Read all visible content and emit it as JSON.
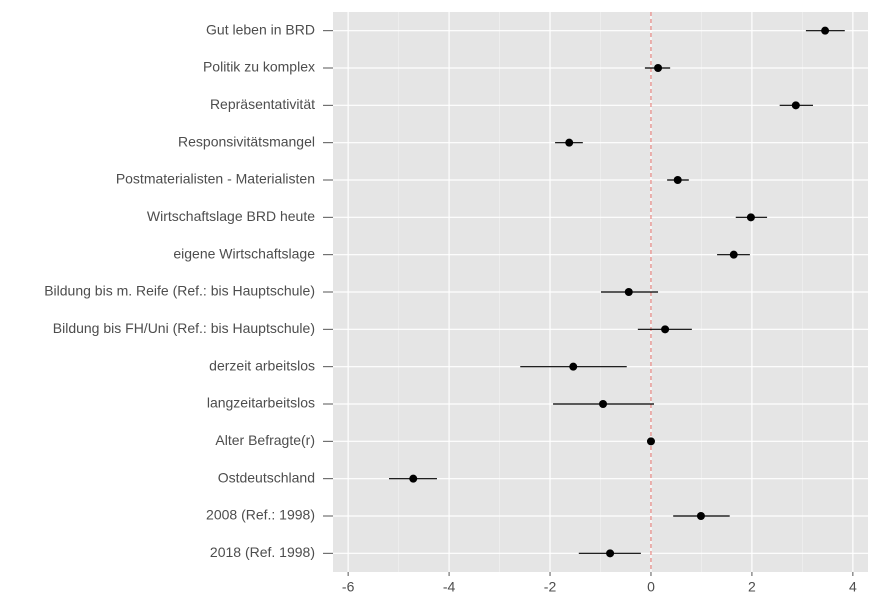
{
  "chart_data": {
    "type": "coefplot",
    "categories": [
      "Gut leben in BRD",
      "Politik zu komplex",
      "Repräsentativität",
      "Responsivitätsmangel",
      "Postmaterialisten - Materialisten",
      "Wirtschaftslage BRD heute",
      "eigene Wirtschaftslage",
      "Bildung bis m. Reife (Ref.: bis Hauptschule)",
      "Bildung bis FH/Uni (Ref.: bis Hauptschule)",
      "derzeit arbeitslos",
      "langzeitarbeitslos",
      "Alter Befragte(r)",
      "Ostdeutschland",
      "2008 (Ref.: 1998)",
      "2018 (Ref. 1998)"
    ],
    "values": [
      3.45,
      0.14,
      2.87,
      -1.62,
      0.53,
      1.98,
      1.64,
      -0.44,
      0.28,
      -1.54,
      -0.95,
      0.0,
      -4.71,
      0.99,
      -0.81
    ],
    "lower": [
      3.07,
      -0.12,
      2.55,
      -1.9,
      0.32,
      1.68,
      1.31,
      -0.99,
      -0.26,
      -2.59,
      -1.94,
      -0.02,
      -5.19,
      0.44,
      -1.43
    ],
    "upper": [
      3.84,
      0.38,
      3.21,
      -1.35,
      0.75,
      2.3,
      1.96,
      0.14,
      0.81,
      -0.48,
      0.06,
      0.02,
      -4.24,
      1.56,
      -0.2
    ],
    "color": "#000000",
    "xlim": [
      -6.3,
      4.3
    ],
    "xticks": [
      -6,
      -4,
      -2,
      0,
      2,
      4
    ],
    "reference_line": 0,
    "reference_color": "#e8756f",
    "grid": true,
    "panel_color": "#e5e5e5"
  }
}
